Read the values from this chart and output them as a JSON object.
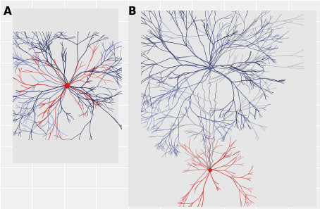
{
  "background_color": "#f0f0f0",
  "grid_color": "#ffffff",
  "panel_A_label": "A",
  "panel_B_label": "B",
  "label_fontsize": 11,
  "label_fontweight": "bold",
  "blue_color": "#3a4a8a",
  "dark_blue": "#1a2050",
  "slate_blue": "#5566aa",
  "red_color": "#cc2222",
  "light_red": "#cc6666",
  "gray_color": "#7a8090",
  "light_gray": "#9999aa",
  "panel_A_bg": "#e4e4e4",
  "panel_B_bg": "#e6e6e6"
}
